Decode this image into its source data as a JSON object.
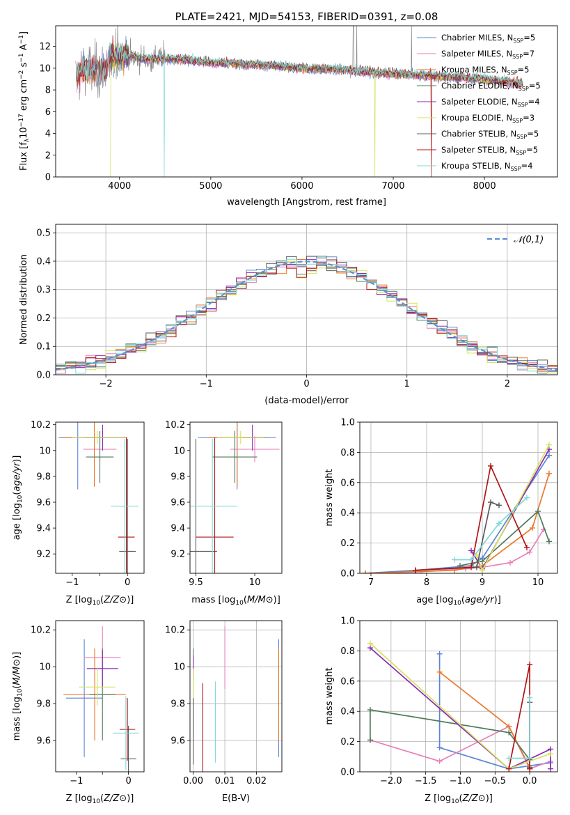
{
  "colors": {
    "Chabrier MILES": "#5b84d6",
    "Salpeter MILES": "#e87fb7",
    "Kroupa MILES": "#e8792a",
    "Chabrier ELODIE": "#4f7a5b",
    "Salpeter ELODIE": "#8a2ab4",
    "Kroupa ELODIE": "#d4e25a",
    "Chabrier STELIB": "#595959",
    "Salpeter STELIB": "#b01515",
    "Kroupa STELIB": "#7fd8d8",
    "data": "#888888",
    "normal": "#5b8fd6"
  },
  "chart_data": [
    {
      "id": "spectrum",
      "type": "line",
      "title": "PLATE=2421, MJD=54153, FIBERID=0391, z=0.08",
      "xlabel": "wavelength [Angstrom, rest frame]",
      "ylabel": "Flux [f_λ 10^-17 erg cm^-2 s^-1 A^-1]",
      "xlim": [
        3300,
        8800
      ],
      "ylim": [
        0,
        13.9
      ],
      "xticks": [
        4000,
        5000,
        6000,
        7000,
        8000
      ],
      "yticks": [
        0,
        2,
        4,
        6,
        8,
        10,
        12
      ],
      "grid": false,
      "legend_position": "upper-right",
      "legend": [
        {
          "label": "Chabrier MILES, N",
          "sub": "SSP",
          "n": "=5",
          "color_key": "Chabrier MILES"
        },
        {
          "label": "Salpeter MILES, N",
          "sub": "SSP",
          "n": "=7",
          "color_key": "Salpeter MILES"
        },
        {
          "label": "Kroupa MILES, N",
          "sub": "SSP",
          "n": "=5",
          "color_key": "Kroupa MILES"
        },
        {
          "label": "Chabrier ELODIE, N",
          "sub": "SSP",
          "n": "=5",
          "color_key": "Chabrier ELODIE"
        },
        {
          "label": "Salpeter ELODIE, N",
          "sub": "SSP",
          "n": "=4",
          "color_key": "Salpeter ELODIE"
        },
        {
          "label": "Kroupa ELODIE, N",
          "sub": "SSP",
          "n": "=3",
          "color_key": "Kroupa ELODIE"
        },
        {
          "label": "Chabrier STELIB, N",
          "sub": "SSP",
          "n": "=5",
          "color_key": "Chabrier STELIB"
        },
        {
          "label": "Salpeter STELIB, N",
          "sub": "SSP",
          "n": "=5",
          "color_key": "Salpeter STELIB"
        },
        {
          "label": "Kroupa STELIB, N",
          "sub": "SSP",
          "n": "=4",
          "color_key": "Kroupa STELIB"
        }
      ],
      "continuum": {
        "x": [
          3520,
          3600,
          3700,
          3800,
          3900,
          4000,
          4100,
          4300,
          4500,
          4700,
          5000,
          5300,
          5600,
          6000,
          6400,
          6800,
          7200,
          7600,
          8000,
          8400
        ],
        "y": [
          9.0,
          10.0,
          9.8,
          9.6,
          10.8,
          11.3,
          11.1,
          10.8,
          10.9,
          10.8,
          10.5,
          10.4,
          10.3,
          10.0,
          9.9,
          9.6,
          9.4,
          9.2,
          9.0,
          8.6
        ]
      }
    },
    {
      "id": "residuals",
      "type": "histogram",
      "xlabel": "(data-model)/error",
      "ylabel": "Normed distribution",
      "xlim": [
        -2.5,
        2.5
      ],
      "ylim": [
        0,
        0.53
      ],
      "xticks": [
        -2,
        -1,
        0,
        1,
        2
      ],
      "yticks": [
        0.0,
        0.1,
        0.2,
        0.3,
        0.4,
        0.5
      ],
      "grid": true,
      "legend": "𝒩(0,1)",
      "legend_position": "upper-right"
    },
    {
      "id": "age_vs_Z",
      "type": "scatter",
      "xlabel": "Z [log10(Z/Z⊙)]",
      "ylabel": "age  [log10(age/yr)]",
      "xlim": [
        -1.3,
        0.3
      ],
      "ylim": [
        9.05,
        10.22
      ],
      "xticks": [
        -1,
        -0.5,
        0
      ],
      "xticklabels": [
        "−1",
        "",
        "0"
      ],
      "yticks": [
        9.2,
        9.4,
        9.6,
        9.8,
        10.0,
        10.2
      ],
      "grid": false,
      "points": [
        {
          "model": "Chabrier MILES",
          "x": -0.9,
          "xerr": 0.35,
          "y": 10.1,
          "yerr": 0.4
        },
        {
          "model": "Salpeter MILES",
          "x": -0.5,
          "xerr": 0.3,
          "y": 10.01,
          "yerr": 0.1
        },
        {
          "model": "Kroupa MILES",
          "x": -0.6,
          "xerr": 0.6,
          "y": 10.1,
          "yerr": 0.38
        },
        {
          "model": "Chabrier ELODIE",
          "x": -0.5,
          "xerr": 0.25,
          "y": 9.95,
          "yerr": 0.2
        },
        {
          "model": "Salpeter ELODIE",
          "x": -0.45,
          "xerr": 0.35,
          "y": 10.1,
          "yerr": 0.1
        },
        {
          "model": "Kroupa ELODIE",
          "x": -0.55,
          "xerr": 0.45,
          "y": 10.1,
          "yerr": 0.05
        },
        {
          "model": "Chabrier STELIB",
          "x": 0.0,
          "xerr": 0.15,
          "y": 9.22,
          "yerr": 0.87
        },
        {
          "model": "Salpeter STELIB",
          "x": -0.02,
          "xerr": 0.15,
          "y": 9.33,
          "yerr": 0.77
        },
        {
          "model": "Kroupa STELIB",
          "x": -0.05,
          "xerr": 0.25,
          "y": 9.57,
          "yerr": 0.52
        }
      ]
    },
    {
      "id": "age_vs_mass",
      "type": "scatter",
      "xlabel": "mass [log10(M/M⊙)]",
      "xlim": [
        9.45,
        10.23
      ],
      "ylim": [
        9.05,
        10.22
      ],
      "xticks": [
        9.5,
        10.0
      ],
      "yticks": [
        9.2,
        9.4,
        9.6,
        9.8,
        10.0,
        10.2
      ],
      "grid": false,
      "points": [
        {
          "model": "Chabrier MILES",
          "x": 9.85,
          "xerr": 0.33,
          "y": 10.1,
          "yerr": 0.4
        },
        {
          "model": "Salpeter MILES",
          "x": 10.0,
          "xerr": 0.21,
          "y": 10.01,
          "yerr": 0.1
        },
        {
          "model": "Kroupa MILES",
          "x": 9.85,
          "xerr": 0.25,
          "y": 10.1,
          "yerr": 0.38
        },
        {
          "model": "Chabrier ELODIE",
          "x": 9.83,
          "xerr": 0.19,
          "y": 9.95,
          "yerr": 0.2
        },
        {
          "model": "Salpeter ELODIE",
          "x": 9.98,
          "xerr": 0.1,
          "y": 10.1,
          "yerr": 0.1
        },
        {
          "model": "Kroupa ELODIE",
          "x": 9.88,
          "xerr": 0.2,
          "y": 10.1,
          "yerr": 0.05
        },
        {
          "model": "Chabrier STELIB",
          "x": 9.5,
          "xerr": 0.18,
          "y": 9.22,
          "yerr": 0.87
        },
        {
          "model": "Salpeter STELIB",
          "x": 9.66,
          "xerr": 0.16,
          "y": 9.33,
          "yerr": 0.77
        },
        {
          "model": "Kroupa STELIB",
          "x": 9.64,
          "xerr": 0.21,
          "y": 9.57,
          "yerr": 0.52
        }
      ]
    },
    {
      "id": "massweight_vs_age",
      "type": "line",
      "xlabel": "age  [log10(age/yr)]",
      "ylabel": "mass weight",
      "xlim": [
        6.8,
        10.35
      ],
      "ylim": [
        0,
        1
      ],
      "xticks": [
        7,
        8,
        9,
        10
      ],
      "yticks": [
        0.0,
        0.2,
        0.4,
        0.6,
        0.8,
        1.0
      ],
      "grid": true,
      "series": [
        {
          "model": "Chabrier MILES",
          "x": [
            6.9,
            7.8,
            8.8,
            9.0,
            10.2
          ],
          "y": [
            0.0,
            0.02,
            0.05,
            0.1,
            0.78
          ]
        },
        {
          "model": "Salpeter MILES",
          "x": [
            6.9,
            7.9,
            8.7,
            9.0,
            9.5,
            9.85,
            10.1
          ],
          "y": [
            0.0,
            0.01,
            0.03,
            0.04,
            0.07,
            0.14,
            0.29
          ]
        },
        {
          "model": "Kroupa MILES",
          "x": [
            6.9,
            8.5,
            9.0,
            9.9,
            10.2
          ],
          "y": [
            0.0,
            0.02,
            0.05,
            0.3,
            0.66
          ]
        },
        {
          "model": "Chabrier ELODIE",
          "x": [
            8.6,
            9.0,
            10.0,
            10.2
          ],
          "y": [
            0.05,
            0.08,
            0.41,
            0.21
          ]
        },
        {
          "model": "Salpeter ELODIE",
          "x": [
            8.8,
            9.0,
            10.2
          ],
          "y": [
            0.15,
            0.03,
            0.82
          ]
        },
        {
          "model": "Kroupa ELODIE",
          "x": [
            8.9,
            9.0,
            10.2
          ],
          "y": [
            0.12,
            0.02,
            0.85
          ]
        },
        {
          "model": "Chabrier STELIB",
          "x": [
            7.8,
            8.9,
            9.15,
            9.3
          ],
          "y": [
            0.02,
            0.04,
            0.47,
            0.45
          ]
        },
        {
          "model": "Salpeter STELIB",
          "x": [
            7.8,
            8.8,
            9.15,
            9.8
          ],
          "y": [
            0.02,
            0.04,
            0.71,
            0.17
          ]
        },
        {
          "model": "Kroupa STELIB",
          "x": [
            8.5,
            8.8,
            9.3,
            9.8
          ],
          "y": [
            0.09,
            0.09,
            0.33,
            0.5
          ]
        }
      ]
    },
    {
      "id": "mass_vs_Z",
      "type": "scatter",
      "xlabel": "Z [log10(Z/Z⊙)]",
      "ylabel": "mass [log10(M/M⊙)]",
      "xlim": [
        -1.4,
        0.3
      ],
      "ylim": [
        9.43,
        10.25
      ],
      "xticks": [
        -1,
        -0.5,
        0
      ],
      "xticklabels": [
        "−1",
        "",
        "0"
      ],
      "yticks": [
        9.6,
        9.8,
        10.0,
        10.2
      ],
      "grid": false,
      "points": [
        {
          "model": "Chabrier MILES",
          "x": -0.85,
          "xerr": 0.35,
          "y": 9.83,
          "yerr": 0.32
        },
        {
          "model": "Salpeter MILES",
          "x": -0.5,
          "xerr": 0.35,
          "y": 10.05,
          "yerr": 0.17
        },
        {
          "model": "Kroupa MILES",
          "x": -0.65,
          "xerr": 0.6,
          "y": 9.85,
          "yerr": 0.25
        },
        {
          "model": "Chabrier ELODIE",
          "x": -0.5,
          "xerr": 0.25,
          "y": 9.85,
          "yerr": 0.25
        },
        {
          "model": "Salpeter ELODIE",
          "x": -0.5,
          "xerr": 0.3,
          "y": 9.99,
          "yerr": 0.1
        },
        {
          "model": "Kroupa ELODIE",
          "x": -0.6,
          "xerr": 0.35,
          "y": 9.89,
          "yerr": 0.1
        },
        {
          "model": "Chabrier STELIB",
          "x": 0.0,
          "xerr": 0.15,
          "y": 9.5,
          "yerr": 0.18
        },
        {
          "model": "Salpeter STELIB",
          "x": -0.02,
          "xerr": 0.15,
          "y": 9.66,
          "yerr": 0.17
        },
        {
          "model": "Kroupa STELIB",
          "x": -0.05,
          "xerr": 0.25,
          "y": 9.64,
          "yerr": 0.2
        }
      ]
    },
    {
      "id": "mass_vs_ebv",
      "type": "scatter",
      "xlabel": "E(B-V)",
      "xlim": [
        -0.001,
        0.028
      ],
      "ylim": [
        9.43,
        10.25
      ],
      "xticks": [
        0.0,
        0.01,
        0.02
      ],
      "xticklabels": [
        "0.00",
        "0.01",
        "0.02"
      ],
      "yticks": [
        9.6,
        9.8,
        10.0,
        10.2
      ],
      "grid": true,
      "points": [
        {
          "model": "Chabrier MILES",
          "x": 0.027,
          "y": 9.83,
          "yerr": 0.32
        },
        {
          "model": "Salpeter MILES",
          "x": 0.01,
          "y": 10.05,
          "yerr": 0.17
        },
        {
          "model": "Kroupa MILES",
          "x": 0.027,
          "y": 9.85,
          "yerr": 0.25
        },
        {
          "model": "Chabrier ELODIE",
          "x": 0.0,
          "y": 9.85,
          "yerr": 0.25
        },
        {
          "model": "Salpeter ELODIE",
          "x": 0.0,
          "y": 9.99,
          "yerr": 0.07
        },
        {
          "model": "Kroupa ELODIE",
          "x": 0.0,
          "y": 9.89,
          "yerr": 0.1
        },
        {
          "model": "Chabrier STELIB",
          "x": 0.0,
          "y": 9.65,
          "yerr": 0.18
        },
        {
          "model": "Salpeter STELIB",
          "x": 0.003,
          "y": 9.66,
          "yerr": 0.25
        },
        {
          "model": "Kroupa STELIB",
          "x": 0.007,
          "y": 9.7,
          "yerr": 0.22
        }
      ]
    },
    {
      "id": "massweight_vs_Z",
      "type": "line",
      "xlabel": "Z [log10(Z/Z⊙)]",
      "ylabel": "mass weight",
      "xlim": [
        -2.45,
        0.4
      ],
      "ylim": [
        0,
        1
      ],
      "xticks": [
        -2.0,
        -1.5,
        -1.0,
        -0.5,
        0.0
      ],
      "xticklabels": [
        "−2.0",
        "−1.5",
        "−1.0",
        "−0.5",
        "0.0"
      ],
      "yticks": [
        0.0,
        0.2,
        0.4,
        0.6,
        0.8,
        1.0
      ],
      "grid": true,
      "series": [
        {
          "model": "Chabrier MILES",
          "x": [
            -1.3,
            -1.3,
            -0.3,
            0.3
          ],
          "y": [
            0.78,
            0.16,
            0.02,
            0.06
          ]
        },
        {
          "model": "Salpeter MILES",
          "x": [
            -2.3,
            -1.3,
            -0.3,
            0.0,
            0.3
          ],
          "y": [
            0.21,
            0.07,
            0.3,
            0.02,
            0.07
          ]
        },
        {
          "model": "Kroupa MILES",
          "x": [
            -1.3,
            -0.3,
            0.0
          ],
          "y": [
            0.66,
            0.3,
            0.03
          ]
        },
        {
          "model": "Chabrier ELODIE",
          "x": [
            -2.3,
            -2.3,
            -0.3,
            0.0
          ],
          "y": [
            0.21,
            0.41,
            0.26,
            0.08
          ]
        },
        {
          "model": "Salpeter ELODIE",
          "x": [
            -2.3,
            -0.3,
            0.3,
            0.3
          ],
          "y": [
            0.82,
            0.02,
            0.15,
            0.02
          ]
        },
        {
          "model": "Kroupa ELODIE",
          "x": [
            -2.3,
            -0.3,
            0.3
          ],
          "y": [
            0.85,
            0.02,
            0.12
          ]
        },
        {
          "model": "Chabrier STELIB",
          "x": [
            0.0,
            0.0,
            0.0
          ],
          "y": [
            0.46,
            0.03,
            0.02
          ]
        },
        {
          "model": "Salpeter STELIB",
          "x": [
            -0.3,
            0.0,
            0.0
          ],
          "y": [
            0.02,
            0.71,
            0.02
          ]
        },
        {
          "model": "Kroupa STELIB",
          "x": [
            -0.3,
            0.0,
            0.0
          ],
          "y": [
            0.09,
            0.09,
            0.49
          ]
        }
      ]
    }
  ]
}
